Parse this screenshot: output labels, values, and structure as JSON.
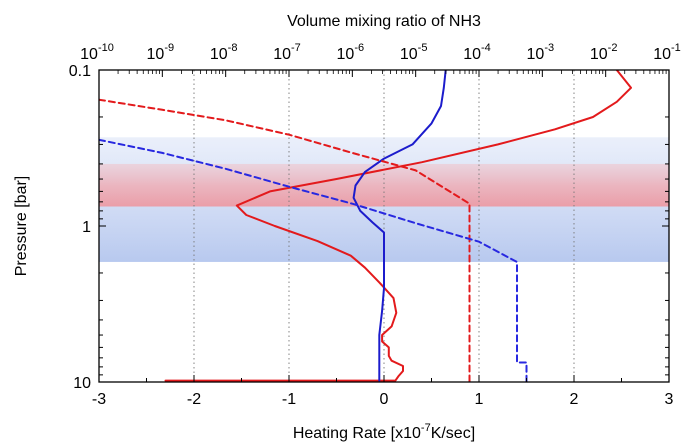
{
  "chart_data": {
    "type": "line",
    "title": "",
    "xlabel": "Heating Rate [x10^-7 K/sec]",
    "xlabel_parts": {
      "pre": "Heating Rate [x10",
      "exp": "-7",
      "post": "K/sec]"
    },
    "ylabel": "Pressure [bar]",
    "x2label": "Volume mixing ratio of NH3",
    "xlim": [
      -3,
      3
    ],
    "ylim": [
      0.1,
      10
    ],
    "y_scale": "log",
    "y_inverted": true,
    "x2lim": [
      1e-10,
      0.1
    ],
    "x2_scale": "log",
    "grid": "vertical dotted",
    "legend": "none",
    "x_ticks": [
      "-3",
      "-2",
      "-1",
      "0",
      "1",
      "2",
      "3"
    ],
    "x_tick_values": [
      -3,
      -2,
      -1,
      0,
      1,
      2,
      3
    ],
    "y_ticks": [
      "0.1",
      "1",
      "10"
    ],
    "y_tick_values": [
      0.1,
      1,
      10
    ],
    "x2_ticks": [
      {
        "base": "10",
        "exp": "-10",
        "value": -10
      },
      {
        "base": "10",
        "exp": "-9",
        "value": -9
      },
      {
        "base": "10",
        "exp": "-8",
        "value": -8
      },
      {
        "base": "10",
        "exp": "-7",
        "value": -7
      },
      {
        "base": "10",
        "exp": "-6",
        "value": -6
      },
      {
        "base": "10",
        "exp": "-5",
        "value": -5
      },
      {
        "base": "10",
        "exp": "-4",
        "value": -4
      },
      {
        "base": "10",
        "exp": "-3",
        "value": -3
      },
      {
        "base": "10",
        "exp": "-2",
        "value": -2
      },
      {
        "base": "10",
        "exp": "-1",
        "value": -1
      }
    ],
    "bands": [
      {
        "p_top": 0.27,
        "p_bottom": 1.7,
        "color": "#b4c6ee",
        "fade": "down"
      },
      {
        "p_top": 0.4,
        "p_bottom": 0.75,
        "color": "#f0b4bc",
        "fade": "center"
      }
    ],
    "series": [
      {
        "axis": "bottom",
        "color": "#e31a1c",
        "dash": "solid",
        "points": [
          [
            2.45,
            0.1
          ],
          [
            2.6,
            0.13
          ],
          [
            2.45,
            0.16
          ],
          [
            2.2,
            0.2
          ],
          [
            1.8,
            0.24
          ],
          [
            1.2,
            0.3
          ],
          [
            0.4,
            0.39
          ],
          [
            -0.5,
            0.5
          ],
          [
            -1.2,
            0.6
          ],
          [
            -1.55,
            0.74
          ],
          [
            -1.45,
            0.85
          ],
          [
            -1.15,
            1.0
          ],
          [
            -0.7,
            1.25
          ],
          [
            -0.35,
            1.55
          ],
          [
            -0.2,
            1.85
          ],
          [
            -0.05,
            2.3
          ],
          [
            0.1,
            2.9
          ],
          [
            0.13,
            3.6
          ],
          [
            0.08,
            4.4
          ],
          [
            -0.02,
            5.0
          ],
          [
            -0.02,
            5.5
          ],
          [
            0.05,
            6.0
          ],
          [
            0.05,
            6.8
          ],
          [
            0.08,
            7.3
          ],
          [
            0.2,
            7.9
          ],
          [
            0.2,
            8.5
          ],
          [
            0.15,
            9.2
          ],
          [
            0.12,
            9.8
          ],
          [
            -2.3,
            9.8
          ]
        ]
      },
      {
        "axis": "bottom",
        "color": "#1c1ccc",
        "dash": "solid",
        "points": [
          [
            0.65,
            0.1
          ],
          [
            0.63,
            0.13
          ],
          [
            0.6,
            0.17
          ],
          [
            0.5,
            0.22
          ],
          [
            0.3,
            0.3
          ],
          [
            0.0,
            0.37
          ],
          [
            -0.2,
            0.45
          ],
          [
            -0.3,
            0.55
          ],
          [
            -0.32,
            0.66
          ],
          [
            -0.25,
            0.8
          ],
          [
            -0.12,
            0.95
          ],
          [
            0.0,
            1.1
          ],
          [
            0.0,
            1.5
          ],
          [
            0.0,
            2.5
          ],
          [
            -0.02,
            3.5
          ],
          [
            -0.05,
            5.0
          ],
          [
            -0.05,
            7.0
          ],
          [
            -0.05,
            9.8
          ]
        ]
      },
      {
        "axis": "top",
        "color": "#e31a1c",
        "dash": "dashed",
        "points": [
          [
            -10,
            0.155
          ],
          [
            -9,
            0.18
          ],
          [
            -8,
            0.21
          ],
          [
            -7,
            0.26
          ],
          [
            -6,
            0.34
          ],
          [
            -5,
            0.44
          ],
          [
            -4.15,
            0.72
          ],
          [
            -4.15,
            10
          ]
        ]
      },
      {
        "axis": "top",
        "color": "#2828e0",
        "dash": "dashed",
        "points": [
          [
            -10,
            0.28
          ],
          [
            -9,
            0.34
          ],
          [
            -8,
            0.43
          ],
          [
            -7,
            0.56
          ],
          [
            -6,
            0.72
          ],
          [
            -5,
            0.96
          ],
          [
            -4,
            1.26
          ],
          [
            -3.4,
            1.7
          ],
          [
            -3.4,
            7.5
          ],
          [
            -3.25,
            7.5
          ],
          [
            -3.25,
            10
          ]
        ]
      }
    ]
  }
}
